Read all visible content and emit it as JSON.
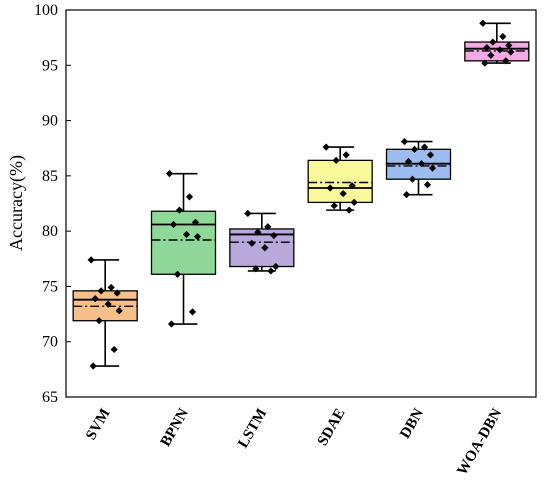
{
  "chart_data": {
    "type": "box",
    "ylabel": "Accuracy(%)",
    "xlabel": "",
    "ylim": [
      65,
      100
    ],
    "yticks": [
      65,
      70,
      75,
      80,
      85,
      90,
      95,
      100
    ],
    "grid": false,
    "categories": [
      "SVM",
      "BPNN",
      "LSTM",
      "SDAE",
      "DBN",
      "WOA-DBN"
    ],
    "boxes": [
      {
        "category": "SVM",
        "color": "#f7c08a",
        "whisker_low": 67.8,
        "q1": 71.9,
        "median": 73.8,
        "mean": 73.2,
        "q3": 74.6,
        "whisker_high": 77.4,
        "points": [
          77.4,
          74.9,
          74.6,
          74.4,
          73.9,
          73.4,
          72.8,
          71.9,
          69.3,
          67.8
        ]
      },
      {
        "category": "BPNN",
        "color": "#8fd89a",
        "whisker_low": 71.6,
        "q1": 76.1,
        "median": 80.6,
        "mean": 79.2,
        "q3": 81.8,
        "whisker_high": 85.2,
        "points": [
          85.2,
          83.1,
          81.9,
          80.8,
          80.6,
          79.7,
          79.5,
          76.1,
          72.7,
          71.6
        ]
      },
      {
        "category": "LSTM",
        "color": "#b8a8dc",
        "whisker_low": 76.4,
        "q1": 76.8,
        "median": 79.7,
        "mean": 79.0,
        "q3": 80.2,
        "whisker_high": 81.6,
        "points": [
          81.6,
          80.4,
          79.9,
          79.6,
          78.9,
          78.5,
          76.8,
          76.6,
          76.4
        ]
      },
      {
        "category": "SDAE",
        "color": "#fafa9c",
        "whisker_low": 81.9,
        "q1": 82.6,
        "median": 83.9,
        "mean": 84.4,
        "q3": 86.4,
        "whisker_high": 87.6,
        "points": [
          87.6,
          86.9,
          86.4,
          84.1,
          83.9,
          83.4,
          82.6,
          82.3,
          81.9
        ]
      },
      {
        "category": "DBN",
        "color": "#9dbcf0",
        "whisker_low": 83.3,
        "q1": 84.7,
        "median": 86.1,
        "mean": 85.9,
        "q3": 87.4,
        "whisker_high": 88.1,
        "points": [
          88.1,
          87.6,
          87.4,
          86.9,
          86.3,
          86.1,
          85.7,
          84.7,
          84.2,
          83.3
        ]
      },
      {
        "category": "WOA-DBN",
        "color": "#f4a9e6",
        "whisker_low": 95.2,
        "q1": 95.4,
        "median": 96.5,
        "mean": 96.3,
        "q3": 97.1,
        "whisker_high": 98.8,
        "points": [
          98.8,
          97.6,
          97.1,
          96.8,
          96.6,
          96.4,
          96.2,
          95.9,
          95.4,
          95.2
        ]
      }
    ]
  }
}
